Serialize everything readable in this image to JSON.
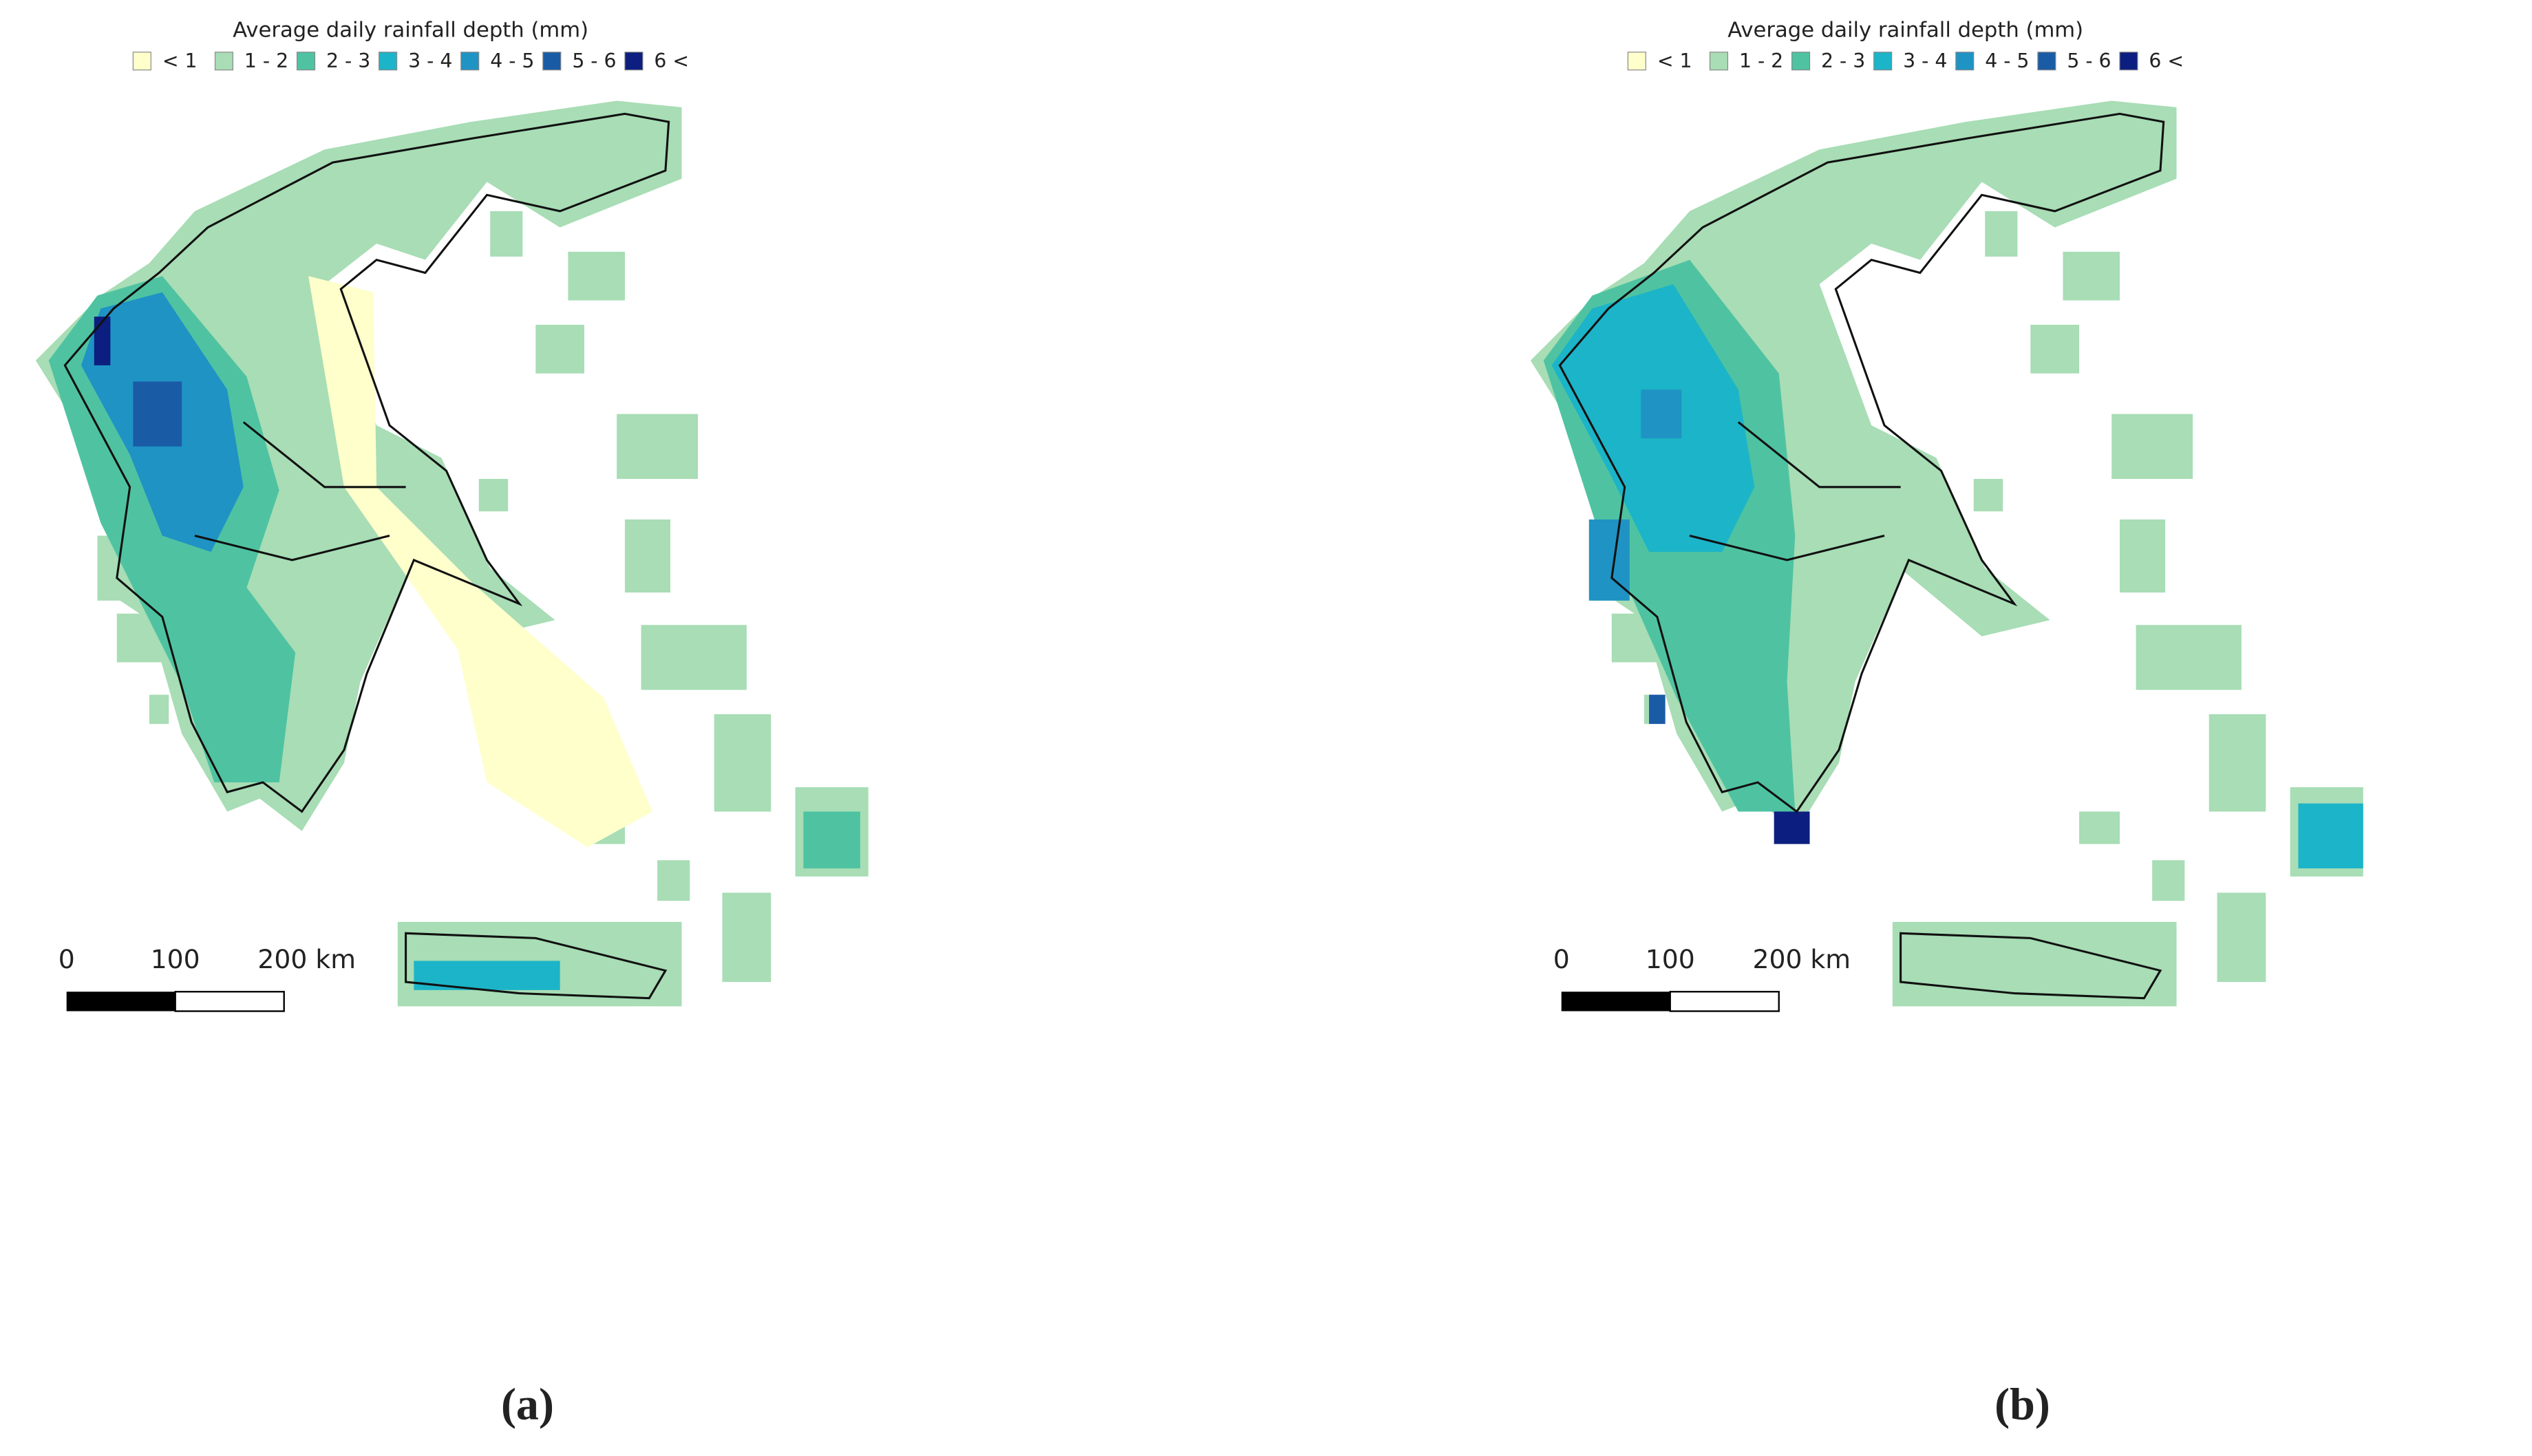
{
  "panels": [
    {
      "legend_title": "Average daily rainfall depth (mm)",
      "legend_items": [
        {
          "label": "< 1",
          "color": "#ffffcc"
        },
        {
          "label": "1 - 2",
          "color": "#a8ddb5"
        },
        {
          "label": "2 - 3",
          "color": "#4fc3a1"
        },
        {
          "label": "3 - 4",
          "color": "#1cb4c8"
        },
        {
          "label": "4 - 5",
          "color": "#1f93c4"
        },
        {
          "label": "5 - 6",
          "color": "#1a5ba6"
        },
        {
          "label": "6 <",
          "color": "#0c1e7f"
        }
      ],
      "scale_labels": [
        "0",
        "100",
        "200 km"
      ],
      "caption": "(a)"
    },
    {
      "legend_title": "Average daily rainfall depth (mm)",
      "legend_items": [
        {
          "label": "< 1",
          "color": "#ffffcc"
        },
        {
          "label": "1 - 2",
          "color": "#a8ddb5"
        },
        {
          "label": "2 - 3",
          "color": "#4fc3a1"
        },
        {
          "label": "3 - 4",
          "color": "#1cb4c8"
        },
        {
          "label": "4 - 5",
          "color": "#1f93c4"
        },
        {
          "label": "5 - 6",
          "color": "#1a5ba6"
        },
        {
          "label": "6 <",
          "color": "#0c1e7f"
        }
      ],
      "scale_labels": [
        "0",
        "100",
        "200 km"
      ],
      "caption": "(b)"
    }
  ]
}
